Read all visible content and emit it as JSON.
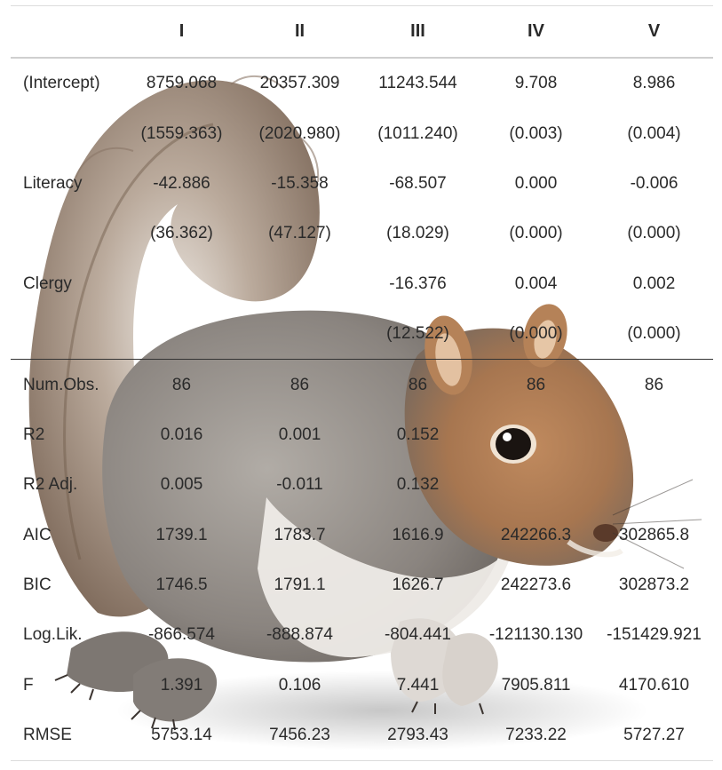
{
  "table": {
    "columns": [
      "",
      "I",
      "II",
      "III",
      "IV",
      "V"
    ],
    "coef_rows": [
      {
        "label": "(Intercept)",
        "values": [
          "8759.068",
          "20357.309",
          "11243.544",
          "9.708",
          "8.986"
        ]
      },
      {
        "label": "",
        "values": [
          "(1559.363)",
          "(2020.980)",
          "(1011.240)",
          "(0.003)",
          "(0.004)"
        ]
      },
      {
        "label": "Literacy",
        "values": [
          "-42.886",
          "-15.358",
          "-68.507",
          "0.000",
          "-0.006"
        ]
      },
      {
        "label": "",
        "values": [
          "(36.362)",
          "(47.127)",
          "(18.029)",
          "(0.000)",
          "(0.000)"
        ]
      },
      {
        "label": "Clergy",
        "values": [
          "",
          "",
          "-16.376",
          "0.004",
          "0.002"
        ]
      },
      {
        "label": "",
        "values": [
          "",
          "",
          "(12.522)",
          "(0.000)",
          "(0.000)"
        ]
      }
    ],
    "gof_rows": [
      {
        "label": "Num.Obs.",
        "values": [
          "86",
          "86",
          "86",
          "86",
          "86"
        ]
      },
      {
        "label": "R2",
        "values": [
          "0.016",
          "0.001",
          "0.152",
          "",
          ""
        ]
      },
      {
        "label": "R2 Adj.",
        "values": [
          "0.005",
          "-0.011",
          "0.132",
          "",
          ""
        ]
      },
      {
        "label": "AIC",
        "values": [
          "1739.1",
          "1783.7",
          "1616.9",
          "242266.3",
          "302865.8"
        ]
      },
      {
        "label": "BIC",
        "values": [
          "1746.5",
          "1791.1",
          "1626.7",
          "242273.6",
          "302873.2"
        ]
      },
      {
        "label": "Log.Lik.",
        "values": [
          "-866.574",
          "-888.874",
          "-804.441",
          "-121130.130",
          "-151429.921"
        ]
      },
      {
        "label": "F",
        "values": [
          "1.391",
          "0.106",
          "7.441",
          "7905.811",
          "4170.610"
        ]
      },
      {
        "label": "RMSE",
        "values": [
          "5753.14",
          "7456.23",
          "2793.43",
          "7233.22",
          "5727.27"
        ]
      }
    ]
  },
  "overlay_image": {
    "subject": "squirrel",
    "fur_color": "#8f8a85",
    "belly_color": "#f1efec",
    "tail_color": "#9b8a7c",
    "accent_color": "#a06a3f"
  }
}
